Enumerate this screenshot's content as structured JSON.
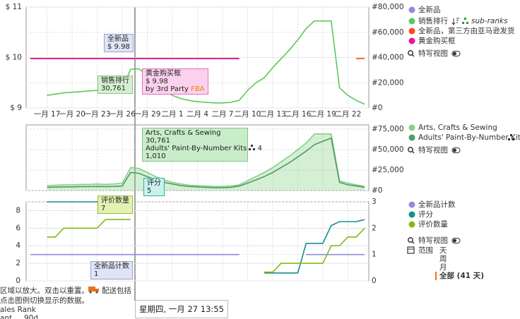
{
  "chart_data": [
    {
      "type": "line",
      "categories": [
        null,
        null,
        "一月 17",
        null,
        null,
        "一月 20",
        null,
        null,
        "一月 23",
        null,
        null,
        "一月 26",
        null,
        null,
        "一月 29",
        null,
        null,
        "二月 1",
        null,
        null,
        "二月 4",
        null,
        null,
        "二月 7",
        null,
        null,
        "二月 10",
        null,
        null,
        "二月 13",
        null,
        null,
        "二月 16",
        null,
        null,
        "二月 19",
        null,
        null,
        "二月 22",
        null,
        null
      ],
      "ylim": [
        9,
        11
      ],
      "yticks": [
        {
          "value": 9,
          "label": "$ 9"
        },
        {
          "value": 10,
          "label": "$ 10"
        },
        {
          "value": 11,
          "label": "$ 11"
        }
      ],
      "y2lim": [
        0,
        80000
      ],
      "y2ticks": [
        {
          "value": 0,
          "label": "#0"
        },
        {
          "value": 20000,
          "label": "#20,000"
        },
        {
          "value": 40000,
          "label": "#40,000"
        },
        {
          "value": 60000,
          "label": "#60,000"
        },
        {
          "value": 80000,
          "label": "#80,000"
        }
      ],
      "grid": true,
      "series": [
        {
          "name": "全新品",
          "color": "#8c8ce0",
          "values": [
            9.98,
            9.98,
            9.98,
            9.98,
            9.98,
            9.98,
            9.98,
            9.98,
            9.98,
            9.98,
            9.98,
            9.98,
            9.98,
            9.98,
            9.98,
            9.98,
            9.98,
            9.98,
            9.98,
            9.98,
            9.98,
            9.98,
            9.98,
            9.98,
            9.98,
            9.98,
            null,
            null,
            null,
            null,
            null,
            null,
            null,
            null,
            null,
            null,
            null,
            null,
            null,
            null,
            null
          ]
        },
        {
          "name": "销售排行",
          "color": "#5cc85c",
          "axis": "y2",
          "values": [
            null,
            null,
            10000,
            11000,
            12000,
            12500,
            13000,
            13500,
            14000,
            13500,
            14500,
            15000,
            30761,
            31000,
            26000,
            19000,
            14000,
            10000,
            7500,
            6000,
            5000,
            4500,
            4000,
            4000,
            4500,
            6000,
            14000,
            20000,
            24000,
            32000,
            39000,
            46000,
            54000,
            63000,
            69000,
            69000,
            69000,
            16000,
            10000,
            6000,
            3000
          ]
        },
        {
          "name": "全新品，第三方由亚马逊发货",
          "color": "#ff4a1c",
          "values": [
            9.98,
            9.98,
            9.98,
            9.98,
            9.98,
            9.98,
            9.98,
            9.98,
            9.98,
            9.98,
            9.98,
            9.98,
            9.98,
            9.98,
            9.98,
            9.98,
            9.98,
            9.98,
            9.98,
            9.98,
            9.98,
            9.98,
            9.98,
            9.98,
            9.98,
            9.98,
            null,
            null,
            null,
            null,
            null,
            null,
            null,
            null,
            null,
            null,
            null,
            null,
            null,
            9.98,
            9.98
          ]
        },
        {
          "name": "黄金购买框",
          "color": "#e8139a",
          "values": [
            9.98,
            9.98,
            9.98,
            9.98,
            9.98,
            9.98,
            9.98,
            9.98,
            9.98,
            9.98,
            9.98,
            9.98,
            9.98,
            9.98,
            9.98,
            9.98,
            9.98,
            9.98,
            9.98,
            9.98,
            9.98,
            9.98,
            9.98,
            9.98,
            9.98,
            9.98,
            null,
            null,
            null,
            null,
            null,
            null,
            null,
            null,
            null,
            null,
            null,
            null,
            null,
            null,
            null
          ]
        }
      ],
      "subranks_label": "sub-ranks",
      "closeup_label": "特写视图",
      "annotations": [
        {
          "lines": [
            "全新品",
            "$ 9.98"
          ]
        },
        {
          "lines": [
            "销售排行",
            "30,761"
          ]
        },
        {
          "lines": [
            "黄金购买框",
            "$ 9.98",
            "by 3rd Party"
          ],
          "badge": "FBA"
        }
      ]
    },
    {
      "type": "line",
      "y2lim": [
        0,
        80000
      ],
      "y2ticks": [
        {
          "value": 0,
          "label": "#0"
        },
        {
          "value": 25000,
          "label": "#25,000"
        },
        {
          "value": 50000,
          "label": "#50,000"
        },
        {
          "value": 75000,
          "label": "#75,000"
        }
      ],
      "grid": true,
      "series": [
        {
          "name": "Arts, Crafts & Sewing",
          "color": "#86d086",
          "axis": "y2",
          "area": true,
          "values": [
            null,
            null,
            6000,
            6500,
            7000,
            7000,
            7500,
            7500,
            8000,
            7500,
            8000,
            9000,
            28000,
            27000,
            22000,
            17000,
            13000,
            10000,
            8000,
            6500,
            6000,
            5500,
            5000,
            5000,
            5500,
            7000,
            12000,
            17000,
            22000,
            28000,
            35000,
            42000,
            50000,
            58000,
            69000,
            69000,
            69000,
            12000,
            9000,
            7000,
            5000
          ]
        },
        {
          "name": "Adults' Paint-By-Number Kits",
          "color": "#4f9a66",
          "axis": "y2",
          "values": [
            null,
            null,
            4000,
            4200,
            4500,
            4500,
            4800,
            4800,
            5000,
            4800,
            5000,
            5500,
            22000,
            21000,
            17000,
            13000,
            10000,
            8000,
            6000,
            5000,
            4500,
            4000,
            3500,
            3500,
            4000,
            5500,
            9000,
            13000,
            17000,
            22000,
            28000,
            34000,
            41000,
            48000,
            56000,
            60000,
            64000,
            10000,
            7000,
            5500,
            4000
          ]
        }
      ],
      "closeup_label": "特写视图",
      "annotations": [
        {
          "lines": [
            "Arts, Crafts & Sewing",
            "30,761"
          ],
          "subcategory": "Adults' Paint-By-Number Kits",
          "subcategory_rank": 4,
          "subcategory_value": "1,010"
        }
      ]
    },
    {
      "type": "line",
      "ylim": [
        0,
        9
      ],
      "yticks": [
        0,
        2,
        4,
        6,
        8
      ],
      "y2lim": [
        0,
        3
      ],
      "y2ticks": [
        0,
        1,
        2,
        3
      ],
      "y3lim": [
        1,
        5
      ],
      "grid": true,
      "series": [
        {
          "name": "全新品计数",
          "color": "#8c8ce0",
          "axis": "y2",
          "values": [
            1,
            1,
            1,
            1,
            1,
            1,
            1,
            1,
            1,
            1,
            1,
            1,
            1,
            1,
            1,
            1,
            1,
            1,
            1,
            1,
            1,
            1,
            1,
            1,
            1,
            1,
            null,
            null,
            null,
            null,
            null,
            null,
            null,
            1,
            1,
            1,
            1,
            1,
            1,
            1,
            1
          ]
        },
        {
          "name": "评分",
          "color": "#15908a",
          "axis": "y3",
          "values": [
            null,
            null,
            5,
            5,
            5,
            5,
            5,
            5,
            5,
            5,
            5,
            5,
            5,
            null,
            null,
            null,
            null,
            null,
            null,
            null,
            null,
            null,
            null,
            null,
            null,
            null,
            null,
            null,
            1.4,
            1.4,
            1.4,
            1.4,
            1.4,
            2.9,
            2.9,
            2.9,
            3.8,
            4.0,
            4.0,
            4.0,
            4.1
          ]
        },
        {
          "name": "评价数量",
          "color": "#86b816",
          "values": [
            null,
            null,
            5,
            5,
            6,
            6,
            6,
            6,
            6,
            7,
            7,
            7,
            7,
            null,
            null,
            null,
            null,
            null,
            null,
            null,
            null,
            null,
            null,
            null,
            null,
            null,
            null,
            null,
            1,
            1,
            2,
            2,
            2,
            2,
            2,
            2,
            4,
            4,
            5,
            5,
            6
          ]
        }
      ],
      "closeup_label": "特写视图",
      "range": {
        "label": "范围",
        "options": [
          "天",
          "周",
          "月",
          "全部 (41 天)"
        ]
      },
      "annotations": [
        {
          "lines": [
            "评分",
            "5"
          ]
        },
        {
          "lines": [
            "评价数量",
            "7"
          ]
        },
        {
          "lines": [
            "全新品计数",
            "1"
          ]
        }
      ]
    }
  ],
  "crosshair_label": "星期四, 一月 27 13:55",
  "footer": {
    "hint1": "区域以放大。双击以重置。",
    "shipping": "配送包括",
    "hint2": "点击图例切换显示的数据。",
    "rank": "ales Rank",
    "ant": "ant",
    "period": "90d"
  }
}
